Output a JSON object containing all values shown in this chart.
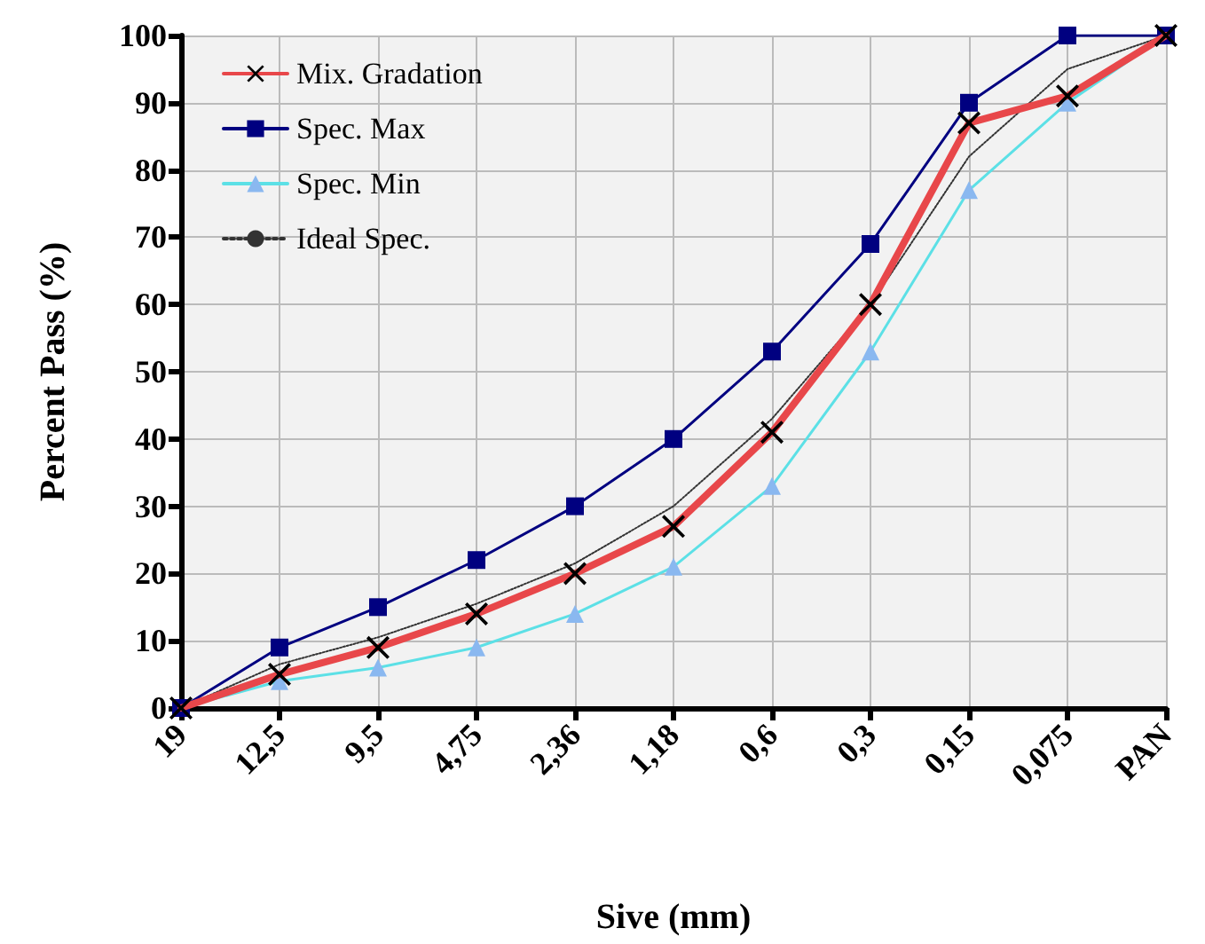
{
  "chart_data": {
    "type": "line",
    "xlabel": "Sive (mm)",
    "ylabel": "Percent Pass (%)",
    "categories": [
      "19",
      "12,5",
      "9,5",
      "4,75",
      "2,36",
      "1,18",
      "0,6",
      "0,3",
      "0,15",
      "0,075",
      "PAN"
    ],
    "series": [
      {
        "name": "Mix. Gradation",
        "color": "#e8474a",
        "marker": "cross",
        "values": [
          0,
          5,
          9,
          14,
          20,
          27,
          41,
          60,
          87,
          91,
          100
        ]
      },
      {
        "name": "Spec. Max",
        "color": "#000080",
        "marker": "square",
        "values": [
          0,
          9,
          15,
          22,
          30,
          40,
          53,
          69,
          90,
          100,
          100
        ]
      },
      {
        "name": "Spec. Min",
        "color": "#5ce0e6",
        "marker": "triangle",
        "values": [
          0,
          4,
          6,
          9,
          14,
          21,
          33,
          53,
          77,
          90,
          100
        ]
      },
      {
        "name": "Ideal Spec.",
        "color": "#333333",
        "marker": "none",
        "line_style": "dotted",
        "values": [
          0,
          6.5,
          10.5,
          15.5,
          21.5,
          30,
          43,
          60,
          82,
          95,
          100
        ]
      }
    ],
    "ylim": [
      0,
      100
    ],
    "yticks": [
      0,
      10,
      20,
      30,
      40,
      50,
      60,
      70,
      80,
      90,
      100
    ],
    "grid": true,
    "legend": "top left"
  }
}
